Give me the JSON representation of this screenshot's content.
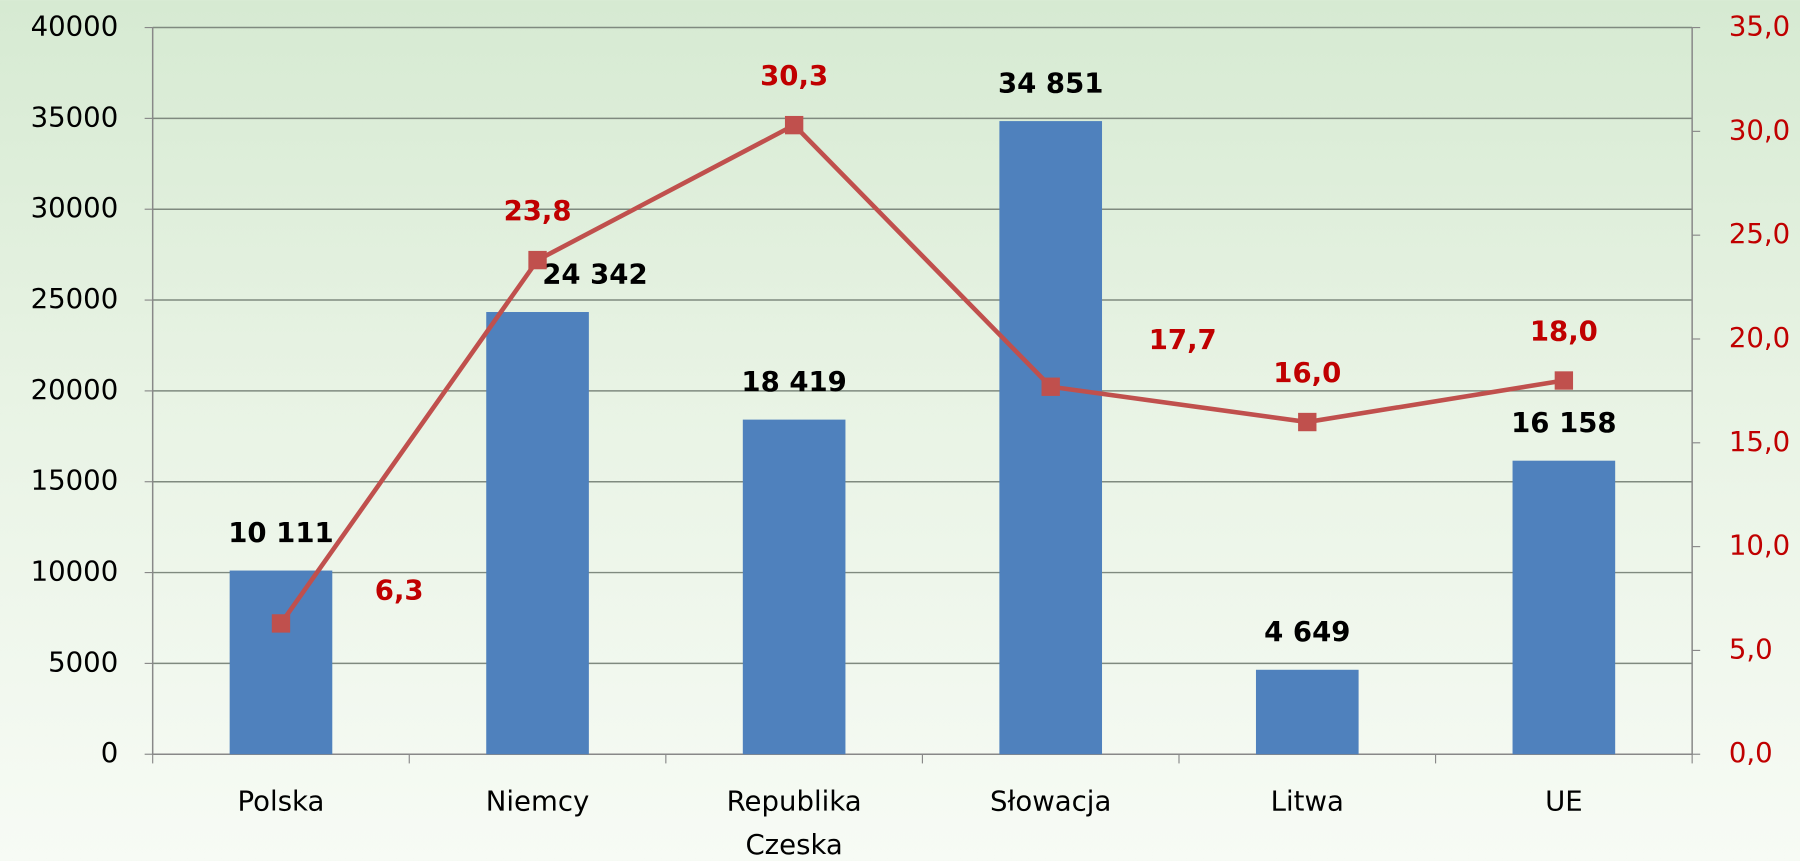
{
  "chart_data": {
    "type": "bar",
    "categories": [
      "Polska",
      "Niemcy",
      "Republika Czeska",
      "Słowacja",
      "Litwa",
      "UE"
    ],
    "series": [
      {
        "type": "bar",
        "color": "#4f81bd",
        "label_color": "#000000",
        "values": [
          10111,
          24342,
          18419,
          34851,
          4649,
          16158
        ],
        "value_labels": [
          "10 111",
          "24 342",
          "18 419",
          "34 851",
          "4 649",
          "16 158"
        ]
      },
      {
        "type": "line",
        "axis": "y2",
        "color": "#c0504d",
        "label_color": "#c00000",
        "values": [
          6.3,
          23.8,
          30.3,
          17.7,
          16.0,
          18.0
        ],
        "value_labels": [
          "6,3",
          "23,8",
          "30,3",
          "17,7",
          "16,0",
          "18,0"
        ]
      }
    ],
    "ylim": [
      0,
      40000
    ],
    "yticks": [
      0,
      5000,
      10000,
      15000,
      20000,
      25000,
      30000,
      35000,
      40000
    ],
    "y2lim": [
      0,
      35
    ],
    "y2ticks": [
      {
        "value": 0,
        "label": "0,0"
      },
      {
        "value": 5,
        "label": "5,0"
      },
      {
        "value": 10,
        "label": "10,0"
      },
      {
        "value": 15,
        "label": "15,0"
      },
      {
        "value": 20,
        "label": "20,0"
      },
      {
        "value": 25,
        "label": "25,0"
      },
      {
        "value": 30,
        "label": "30,0"
      },
      {
        "value": 35,
        "label": "35,0"
      }
    ],
    "y2_color": "#c00000",
    "grid": true
  }
}
